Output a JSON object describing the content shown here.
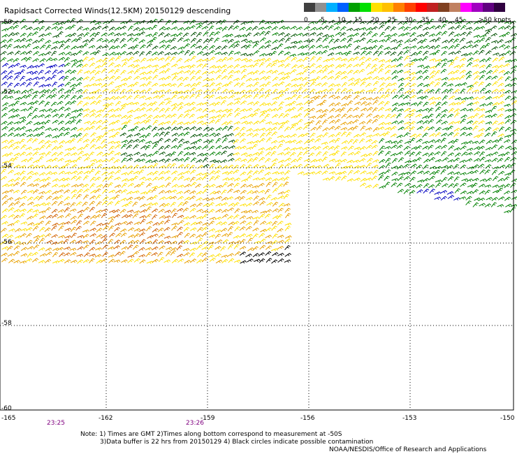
{
  "title": "Rapidsact Corrected Winds(12.5KM) 20150129 descending",
  "legend": {
    "labels": [
      "0",
      "5",
      "10",
      "15",
      "20",
      "25",
      "30",
      "35",
      "40",
      "45",
      ">50 knots"
    ],
    "colors": [
      "#404040",
      "#909090",
      "#00b0ff",
      "#0060ff",
      "#00a000",
      "#00e000",
      "#ffe000",
      "#ffc000",
      "#ff8000",
      "#ff4000",
      "#ff0000",
      "#c02020",
      "#804020",
      "#c08060",
      "#ff00ff",
      "#a000c0",
      "#600080",
      "#300040"
    ]
  },
  "axes": {
    "y_labels": [
      "-50",
      "-52",
      "-54",
      "-56",
      "-58",
      "-60"
    ],
    "x_labels": [
      "-165",
      "-162",
      "-159",
      "-156",
      "-153",
      "-150"
    ]
  },
  "times": [
    "23:25",
    "23:26"
  ],
  "notes": [
    "Note: 1) Times are GMT 2)Times along bottom correspond to measurement at -50S",
    "3)Data buffer is 22 hrs from 20150129 4) Black circles indicate possible contamination"
  ],
  "credit": "NOAA/NESDIS/Office of Research and Applications",
  "map": {
    "lat_range": [
      -60,
      -50
    ],
    "lon_range": [
      -165,
      -150
    ],
    "swath_colors": {
      "green": "#008000",
      "dark_green": "#005000",
      "yellow": "#ffe000",
      "orange": "#e8a000",
      "dark_orange": "#d06000",
      "blue": "#0000c0",
      "black": "#000000"
    }
  }
}
